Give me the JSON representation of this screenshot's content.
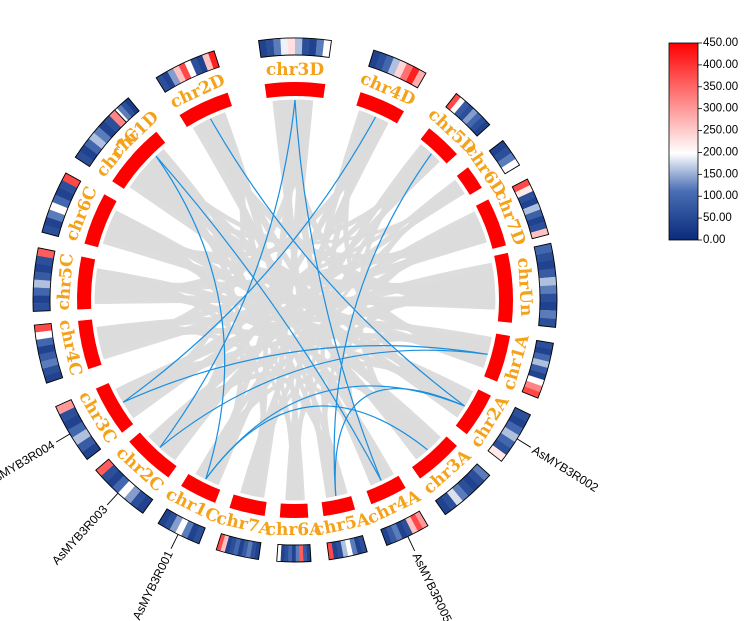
{
  "chromosomes": [
    {
      "id": "chr1D",
      "label": "chr1D",
      "heat": [
        330,
        180,
        60,
        40,
        200,
        120,
        60,
        30
      ]
    },
    {
      "id": "chr2D",
      "label": "chr2D",
      "heat": [
        60,
        40,
        140,
        260,
        380,
        200,
        60,
        40,
        260,
        420
      ]
    },
    {
      "id": "chr3D",
      "label": "chr3D",
      "heat": [
        40,
        60,
        120,
        190,
        230,
        160,
        60,
        40,
        120,
        200
      ]
    },
    {
      "id": "chr4D",
      "label": "chr4D",
      "heat": [
        40,
        60,
        100,
        160,
        240,
        340,
        420,
        280
      ]
    },
    {
      "id": "chr5D",
      "label": "chr5D",
      "heat": [
        380,
        200,
        80,
        60,
        140,
        100,
        60,
        40
      ]
    },
    {
      "id": "chr6D",
      "label": "chr6D",
      "heat": [
        40,
        60,
        120,
        200
      ]
    },
    {
      "id": "chr7D",
      "label": "chr7D",
      "heat": [
        380,
        220,
        60,
        40,
        160,
        90,
        40,
        60,
        260
      ]
    },
    {
      "id": "chrUn",
      "label": "chrUn",
      "heat": [
        100,
        60,
        40,
        80,
        160,
        120,
        60,
        40,
        120,
        60
      ]
    },
    {
      "id": "chr1A",
      "label": "chr1A",
      "heat": [
        60,
        40,
        100,
        160,
        80,
        40,
        200,
        320,
        380
      ]
    },
    {
      "id": "chr2A",
      "label": "chr2A",
      "heat": [
        60,
        40,
        100,
        160,
        100,
        60,
        220
      ]
    },
    {
      "id": "chr3A",
      "label": "chr3A",
      "heat": [
        120,
        60,
        40,
        60,
        120,
        180,
        60,
        40
      ]
    },
    {
      "id": "chr4A",
      "label": "chr4A",
      "heat": [
        300,
        380,
        260,
        60,
        40,
        120,
        80,
        40
      ]
    },
    {
      "id": "chr5A",
      "label": "chr5A",
      "heat": [
        60,
        40,
        120,
        200,
        160,
        60,
        40,
        380
      ]
    },
    {
      "id": "chr6A",
      "label": "chr6A",
      "heat": [
        40,
        80,
        360,
        120,
        40,
        100,
        60,
        40,
        200
      ]
    },
    {
      "id": "chr7A",
      "label": "chr7A",
      "heat": [
        40,
        60,
        120,
        80,
        40,
        100,
        60,
        40,
        260,
        380
      ]
    },
    {
      "id": "chr1C",
      "label": "chr1C",
      "heat": [
        60,
        40,
        120,
        200,
        140,
        60,
        40
      ]
    },
    {
      "id": "chr2C",
      "label": "chr2C",
      "heat": [
        40,
        60,
        140,
        200,
        100,
        40,
        60,
        360
      ]
    },
    {
      "id": "chr3C",
      "label": "chr3C",
      "heat": [
        40,
        80,
        160,
        100,
        40,
        60,
        300
      ]
    },
    {
      "id": "chr4C",
      "label": "chr4C",
      "heat": [
        40,
        60,
        120,
        80,
        40,
        100,
        200,
        380
      ]
    },
    {
      "id": "chr5C",
      "label": "chr5C",
      "heat": [
        60,
        40,
        100,
        160,
        80,
        40,
        60,
        360
      ]
    },
    {
      "id": "chr6C",
      "label": "chr6C",
      "heat": [
        60,
        40,
        120,
        200,
        100,
        40,
        60,
        380
      ]
    },
    {
      "id": "chr7C",
      "label": "chr7C",
      "heat": [
        60,
        40,
        100,
        160,
        120,
        40,
        60,
        320
      ]
    }
  ],
  "genes": [
    {
      "name": "AsMYB3R001",
      "chromosome": "chr1C"
    },
    {
      "name": "AsMYB3R002",
      "chromosome": "chr2A"
    },
    {
      "name": "AsMYB3R003",
      "chromosome": "chr2C"
    },
    {
      "name": "AsMYB3R004",
      "chromosome": "chr3C"
    },
    {
      "name": "AsMYB3R005",
      "chromosome": "chr4A"
    }
  ],
  "links": {
    "background_color": "#dcdcdc",
    "highlight_color": "#1a8fe0",
    "highlight_pairs": [
      [
        "chr1D",
        "chr1C"
      ],
      [
        "chr2D",
        "chr2A"
      ],
      [
        "chr3D",
        "chr4A"
      ],
      [
        "chr3D",
        "chr2C"
      ],
      [
        "chr1D",
        "chr4A"
      ],
      [
        "chr3C",
        "chr1A"
      ],
      [
        "chr2C",
        "chr1A"
      ],
      [
        "chr5A",
        "chr2A"
      ],
      [
        "chr1C",
        "chr3A"
      ],
      [
        "chr3C",
        "chr4D"
      ],
      [
        "chr5A",
        "chr5D"
      ],
      [
        "chr1C",
        "chr2A"
      ]
    ]
  },
  "legend": {
    "min": 0,
    "max": 450,
    "ticks": [
      "450.00",
      "400.00",
      "350.00",
      "300.00",
      "250.00",
      "200.00",
      "150.00",
      "100.00",
      "50.00",
      "0.00"
    ],
    "colors": {
      "low": "#0a2a7a",
      "mid": "#ffffff",
      "high": "#ff0000"
    }
  },
  "colors": {
    "ideogram": "#ff0000",
    "label": "#f5a21b"
  }
}
